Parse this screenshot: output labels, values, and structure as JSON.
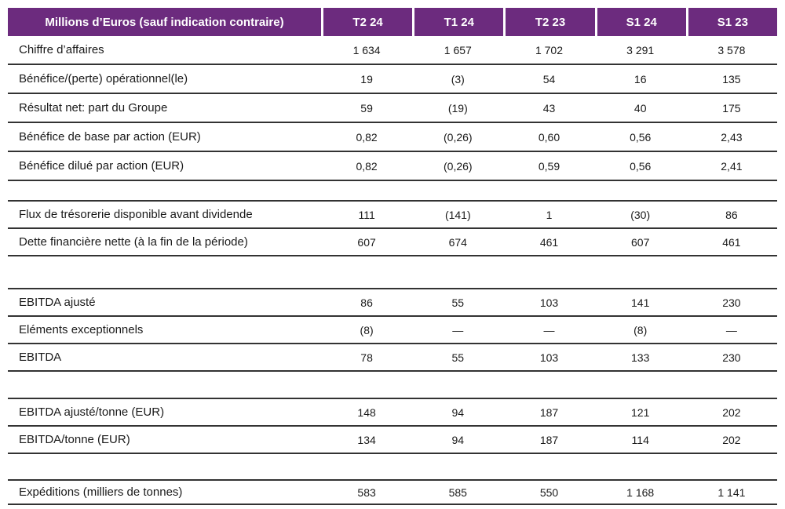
{
  "table": {
    "header": {
      "label_column": "Millions d’Euros (sauf indication contraire)",
      "columns": [
        "T2 24",
        "T1 24",
        "T2 23",
        "S1 24",
        "S1 23"
      ]
    },
    "sections": [
      {
        "rows": [
          {
            "label": "Chiffre d’affaires",
            "values": [
              "1 634",
              "1 657",
              "1 702",
              "3 291",
              "3 578"
            ]
          },
          {
            "label": "Bénéfice/(perte) opérationnel(le)",
            "values": [
              "19",
              "(3)",
              "54",
              "16",
              "135"
            ]
          },
          {
            "label": "Résultat net: part du Groupe",
            "values": [
              "59",
              "(19)",
              "43",
              "40",
              "175"
            ]
          },
          {
            "label": "Bénéfice de base par action (EUR)",
            "values": [
              "0,82",
              "(0,26)",
              "0,60",
              "0,56",
              "2,43"
            ]
          },
          {
            "label": "Bénéfice dilué par action (EUR)",
            "values": [
              "0,82",
              "(0,26)",
              "0,59",
              "0,56",
              "2,41"
            ]
          }
        ]
      },
      {
        "rows": [
          {
            "label": "Flux de trésorerie disponible avant dividende",
            "values": [
              "111",
              "(141)",
              "1",
              "(30)",
              "86"
            ]
          },
          {
            "label": "Dette financière nette (à la fin de la période)",
            "values": [
              "607",
              "674",
              "461",
              "607",
              "461"
            ]
          }
        ]
      },
      {
        "rows": [
          {
            "label": "EBITDA ajusté",
            "values": [
              "86",
              "55",
              "103",
              "141",
              "230"
            ]
          },
          {
            "label": "Eléments exceptionnels",
            "values": [
              "(8)",
              "—",
              "—",
              "(8)",
              "—"
            ]
          },
          {
            "label": "EBITDA",
            "values": [
              "78",
              "55",
              "103",
              "133",
              "230"
            ]
          }
        ]
      },
      {
        "rows": [
          {
            "label": "EBITDA ajusté/tonne (EUR)",
            "values": [
              "148",
              "94",
              "187",
              "121",
              "202"
            ]
          },
          {
            "label": "EBITDA/tonne (EUR)",
            "values": [
              "134",
              "94",
              "187",
              "114",
              "202"
            ]
          }
        ]
      },
      {
        "rows": [
          {
            "label": "Expéditions (milliers de tonnes)",
            "values": [
              "583",
              "585",
              "550",
              "1 168",
              "1 141"
            ]
          }
        ]
      }
    ],
    "colors": {
      "header_bg": "#6C2B7E",
      "header_text": "#FFFFFF",
      "rule": "#333333"
    }
  }
}
